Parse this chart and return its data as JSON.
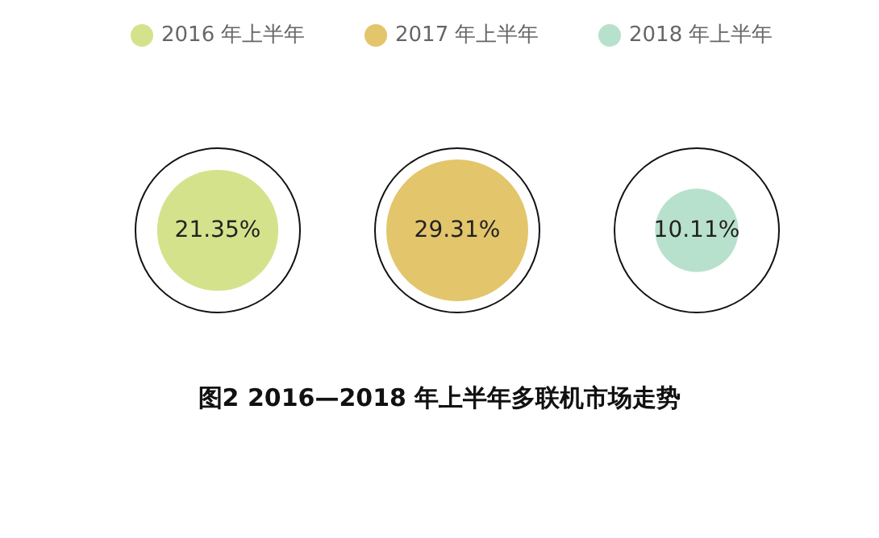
{
  "chart_data": {
    "type": "other",
    "title": "图2  2016—2018 年上半年多联机市场走势",
    "categories": [
      "2016 年上半年",
      "2017 年上半年",
      "2018 年上半年"
    ],
    "values": [
      21.35,
      29.31,
      10.11
    ],
    "value_labels": [
      "21.35%",
      "29.31%",
      "10.11%"
    ],
    "colors": [
      "#d5e28c",
      "#e3c56c",
      "#b8e1cd"
    ]
  }
}
